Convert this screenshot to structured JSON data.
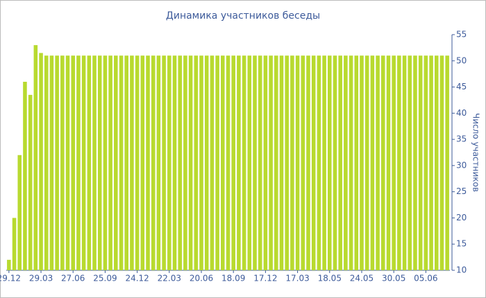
{
  "chart_data": {
    "type": "bar",
    "title": "Динамика участников беседы",
    "y_axis_label": "Число участников",
    "categories": [
      "29.12",
      null,
      null,
      null,
      null,
      null,
      "29.03",
      null,
      null,
      null,
      null,
      null,
      "27.06",
      null,
      null,
      null,
      null,
      null,
      "25.09",
      null,
      null,
      null,
      null,
      null,
      "24.12",
      null,
      null,
      null,
      null,
      null,
      "22.03",
      null,
      null,
      null,
      null,
      null,
      "20.06",
      null,
      null,
      null,
      null,
      null,
      "18.09",
      null,
      null,
      null,
      null,
      null,
      "17.12",
      null,
      null,
      null,
      null,
      null,
      "17.03",
      null,
      null,
      null,
      null,
      null,
      "18.05",
      null,
      null,
      null,
      null,
      null,
      "24.05",
      null,
      null,
      null,
      null,
      null,
      "30.05",
      null,
      null,
      null,
      null,
      null,
      "05.06",
      null,
      null,
      null,
      null
    ],
    "values": [
      12,
      20,
      32,
      46,
      43.5,
      53,
      51.5,
      51,
      51,
      51,
      51,
      51,
      51,
      51,
      51,
      51,
      51,
      51,
      51,
      51,
      51,
      51,
      51,
      51,
      51,
      51,
      51,
      51,
      51,
      51,
      51,
      51,
      51,
      51,
      51,
      51,
      51,
      51,
      51,
      51,
      51,
      51,
      51,
      51,
      51,
      51,
      51,
      51,
      51,
      51,
      51,
      51,
      51,
      51,
      51,
      51,
      51,
      51,
      51,
      51,
      51,
      51,
      51,
      51,
      51,
      51,
      51,
      51,
      51,
      51,
      51,
      51,
      51,
      51,
      51,
      51,
      51,
      51,
      51,
      51,
      51,
      51,
      51
    ],
    "color": "#b8da2f",
    "ylim": [
      10,
      55
    ],
    "yticks": [
      10,
      15,
      20,
      25,
      30,
      35,
      40,
      45,
      50,
      55
    ],
    "y_axis_side": "right"
  }
}
